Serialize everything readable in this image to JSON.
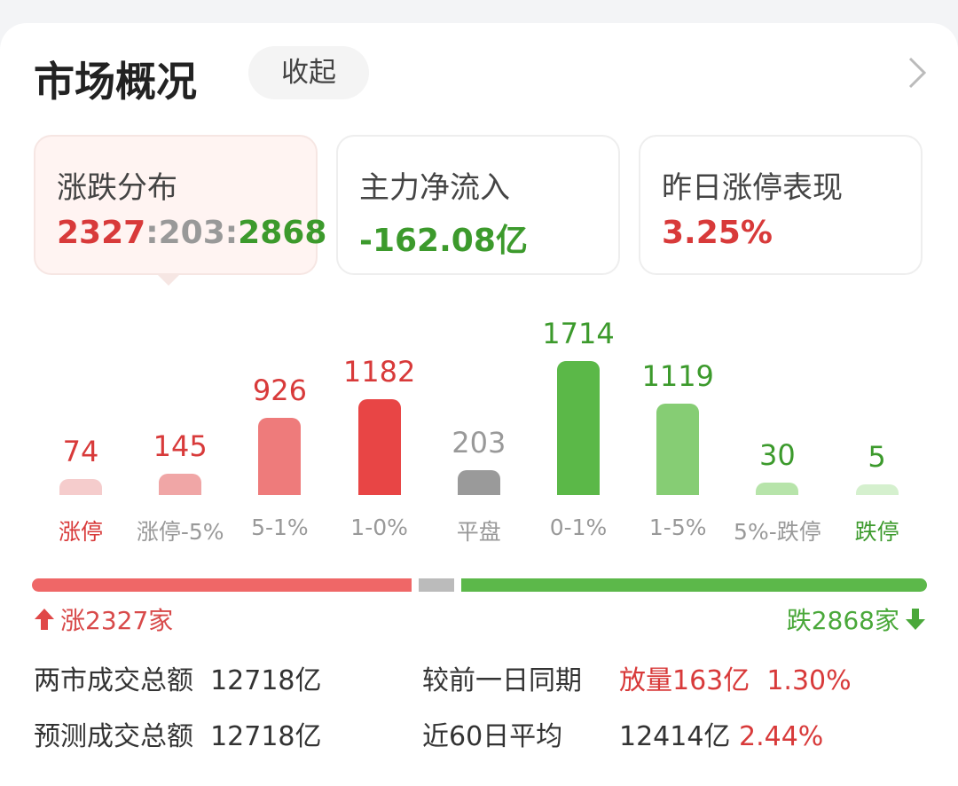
{
  "header": {
    "title": "市场概况",
    "collapse_label": "收起",
    "chevron_icon": "chevron-right-icon"
  },
  "tiles": [
    {
      "label": "涨跌分布",
      "up": "2327",
      "flat": "203",
      "down": "2868",
      "sep": ":"
    },
    {
      "label": "主力净流入",
      "value": "-162.08亿"
    },
    {
      "label": "昨日涨停表现",
      "value": "3.25%"
    }
  ],
  "chart_data": {
    "type": "bar",
    "categories": [
      "涨停",
      "涨停-5%",
      "5-1%",
      "1-0%",
      "平盘",
      "0-1%",
      "1-5%",
      "5%-跌停",
      "跌停"
    ],
    "values": [
      74,
      145,
      926,
      1182,
      203,
      1714,
      1119,
      30,
      5
    ],
    "colors": [
      "#f5cccc",
      "#f0a6a6",
      "#ee7b7b",
      "#e84545",
      "#9a9a9a",
      "#5bb848",
      "#86cd74",
      "#b7e4aa",
      "#d5f0ce"
    ],
    "label_colors": [
      "#d83a3a",
      "#d83a3a",
      "#d83a3a",
      "#d83a3a",
      "#999999",
      "#3c9a2c",
      "#3c9a2c",
      "#3c9a2c",
      "#3c9a2c"
    ],
    "category_colors": [
      "#d83a3a",
      "#999999",
      "#999999",
      "#999999",
      "#999999",
      "#999999",
      "#999999",
      "#999999",
      "#3c9a2c"
    ]
  },
  "ratio": {
    "up": 2327,
    "flat": 203,
    "down": 2868,
    "up_label": "涨2327家",
    "down_label": "跌2868家",
    "colors": {
      "up": "#ef6767",
      "flat": "#bbbbbb",
      "down": "#5cb84a"
    }
  },
  "stats": {
    "total_label": "两市成交总额",
    "total_value": "12718亿",
    "forecast_label": "预测成交总额",
    "forecast_value": "12718亿",
    "compare_label": "较前一日同期",
    "compare_value": "放量163亿",
    "compare_pct": "1.30%",
    "avg_label": "近60日平均",
    "avg_value": "12414亿",
    "avg_pct": "2.44%"
  }
}
